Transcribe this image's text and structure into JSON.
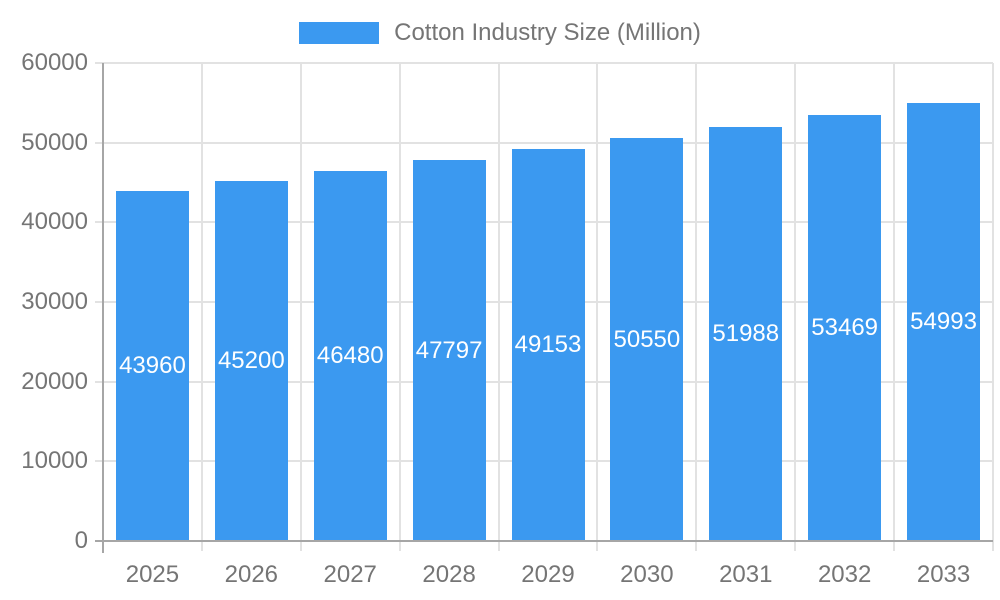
{
  "chart_data": {
    "type": "bar",
    "title": "Cotton Industry Size (Million)",
    "categories": [
      "2025",
      "2026",
      "2027",
      "2028",
      "2029",
      "2030",
      "2031",
      "2032",
      "2033"
    ],
    "values": [
      43960,
      45200,
      46480,
      47797,
      49153,
      50550,
      51988,
      53469,
      54993
    ],
    "xlabel": "",
    "ylabel": "",
    "ylim": [
      0,
      60000
    ],
    "yticks": [
      0,
      10000,
      20000,
      30000,
      40000,
      50000,
      60000
    ],
    "grid": true,
    "legend_position": "top",
    "value_label_position": "inside-center",
    "colors": {
      "bar": "#3b99f0",
      "bar_value_label": "#ffffff",
      "axis_text": "#757575",
      "gridline": "#e2e2e2",
      "axis_line": "#a6a6a6",
      "background": "#ffffff"
    }
  }
}
